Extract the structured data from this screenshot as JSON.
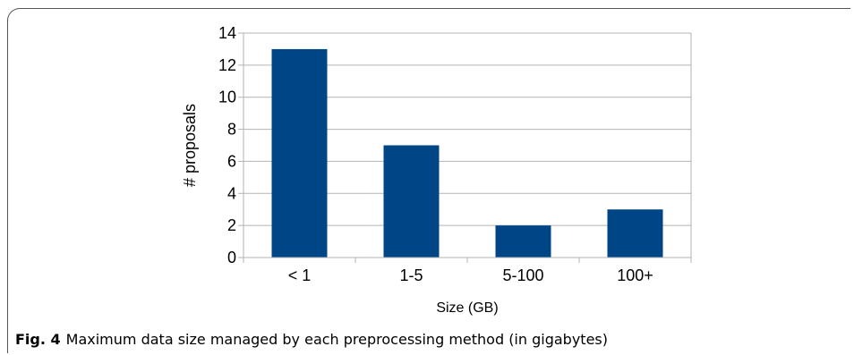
{
  "chart_data": {
    "type": "bar",
    "categories": [
      "< 1",
      "1-5",
      "5-100",
      "100+"
    ],
    "values": [
      13,
      7,
      2,
      3
    ],
    "title": "",
    "xlabel": "Size (GB)",
    "ylabel": "# proposals",
    "ylim": [
      0,
      14
    ],
    "yticks": [
      0,
      2,
      4,
      6,
      8,
      10,
      12,
      14
    ],
    "grid": true,
    "bar_color": "#004586",
    "legend": "none"
  },
  "caption": {
    "label": "Fig. 4",
    "text": "Maximum data size managed by each preprocessing method (in gigabytes)"
  }
}
